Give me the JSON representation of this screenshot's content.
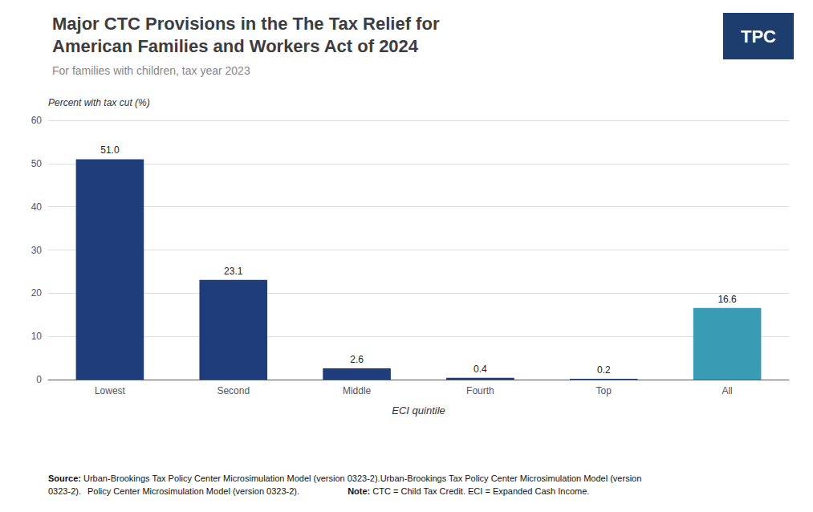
{
  "chart_data": {
    "type": "bar",
    "title": "Major CTC Provisions in the The Tax Relief for\nAmerican Families and Workers Act of 2024",
    "subtitle": "For families with children, tax year 2023",
    "x_label": "ECI quintile",
    "y_label": "Percent with tax cut (%)",
    "categories": [
      "Lowest",
      "Second",
      "Middle",
      "Fourth",
      "Top",
      "All"
    ],
    "values": [
      51.0,
      23.1,
      2.6,
      0.4,
      0.2,
      16.6
    ],
    "value_labels": [
      "51.0",
      "23.1",
      "2.6",
      "0.4",
      "0.2",
      "16.6"
    ],
    "colors": [
      "#1f3d7a",
      "#1f3d7a",
      "#1f3d7a",
      "#1f3d7a",
      "#1f3d7a",
      "#3a9bb5"
    ],
    "ylim": [
      0,
      60
    ],
    "yticks": [
      0,
      10,
      20,
      30,
      40,
      50,
      60
    ],
    "grid": true,
    "data_labels": true,
    "annotations": [
      "Source: Urban-Brookings Tax Policy Center Microsimulation Model (version 0323-2).Urban-Brookings Tax Policy Center Microsimulation Model (version 0323-2).",
      "Policy Center Microsimulation Model (version 0323-2).",
      "Note: CTC = Child Tax Credit. ECI = Expanded Cash Income.",
      "TPC"
    ]
  }
}
